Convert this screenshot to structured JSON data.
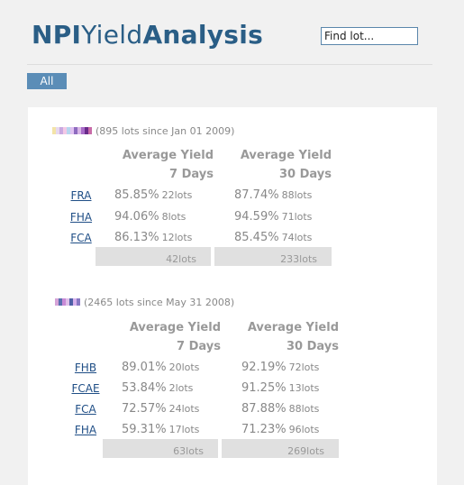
{
  "header": {
    "logo_part1": "NPI",
    "logo_part2": "Yield",
    "logo_part3": "Analysis",
    "search_placeholder": "Find lot..."
  },
  "tabs": [
    {
      "label": "All",
      "active": true
    }
  ],
  "colors": {
    "brand": "#2a5e86",
    "tab": "#5b8db7",
    "link": "#1f4e86",
    "total_bg": "#e0e0e0"
  },
  "groups": [
    {
      "summary": "(895 lots since Jan 01 2009)",
      "col1": {
        "line1": "Average Yield",
        "line2": "7 Days"
      },
      "col2": {
        "line1": "Average Yield",
        "line2": "30 Days"
      },
      "rows": [
        {
          "code": "FRA",
          "y7": "85.85%",
          "l7": "22lots",
          "y30": "87.74%",
          "l30": "88lots"
        },
        {
          "code": "FHA",
          "y7": "94.06%",
          "l7": "8lots",
          "y30": "94.59%",
          "l30": "71lots"
        },
        {
          "code": "FCA",
          "y7": "86.13%",
          "l7": "12lots",
          "y30": "85.45%",
          "l30": "74lots"
        }
      ],
      "total7": "42lots",
      "total30": "233lots"
    },
    {
      "summary": "(2465 lots since May 31 2008)",
      "col1": {
        "line1": "Average Yield",
        "line2": "7 Days"
      },
      "col2": {
        "line1": "Average Yield",
        "line2": "30 Days"
      },
      "rows": [
        {
          "code": "FHB",
          "y7": "89.01%",
          "l7": "20lots",
          "y30": "92.19%",
          "l30": "72lots"
        },
        {
          "code": "FCAE",
          "y7": "53.84%",
          "l7": "2lots",
          "y30": "91.25%",
          "l30": "13lots"
        },
        {
          "code": "FCA",
          "y7": "72.57%",
          "l7": "24lots",
          "y30": "87.88%",
          "l30": "88lots"
        },
        {
          "code": "FHA",
          "y7": "59.31%",
          "l7": "17lots",
          "y30": "71.23%",
          "l30": "96lots"
        }
      ],
      "total7": "63lots",
      "total30": "269lots"
    }
  ]
}
